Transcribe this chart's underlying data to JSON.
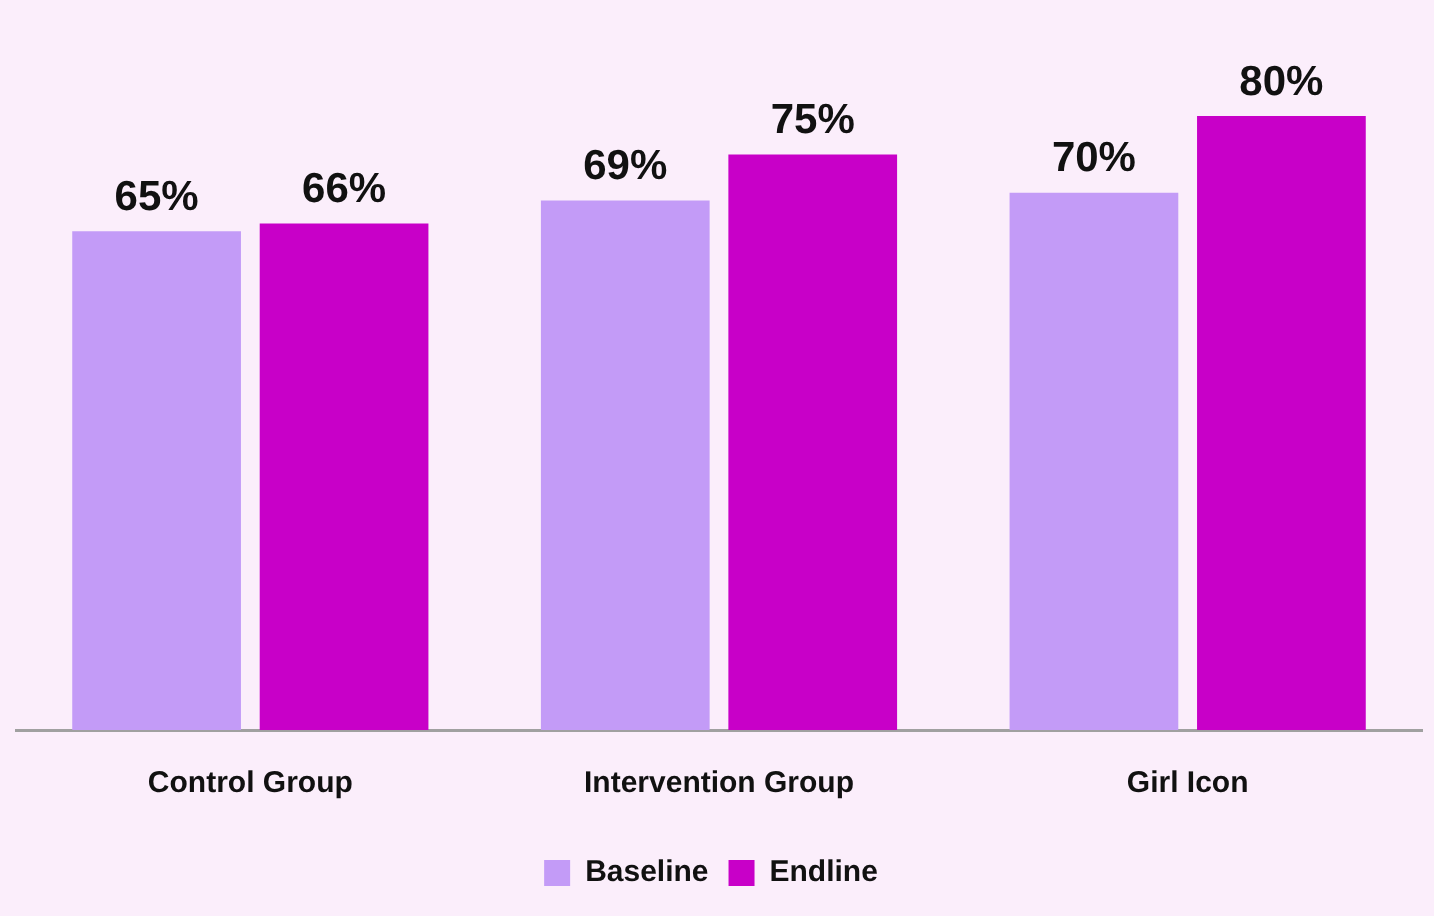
{
  "chart_data": {
    "type": "bar",
    "categories": [
      "Control Group",
      "Intervention Group",
      "Girl Icon"
    ],
    "series": [
      {
        "name": "Baseline",
        "color": "#c39bf7",
        "values": [
          65,
          69,
          70
        ],
        "value_labels": [
          "65%",
          "69%",
          "70%"
        ]
      },
      {
        "name": "Endline",
        "color": "#c800c8",
        "values": [
          66,
          75,
          80
        ],
        "value_labels": [
          "66%",
          "75%",
          "80%"
        ]
      }
    ],
    "tick_labels": "x",
    "grid": false,
    "legend": "bottom"
  }
}
